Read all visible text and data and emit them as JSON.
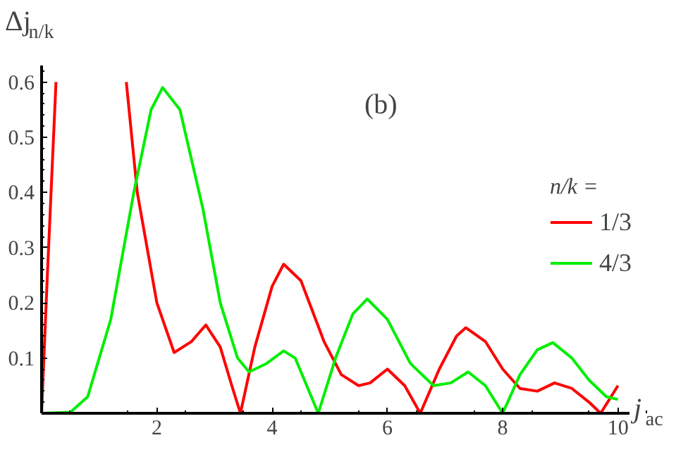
{
  "chart_data": {
    "type": "line",
    "ylabel": "Δj$_{n/k}$",
    "xlabel": "j$_{ac}$",
    "legend_title": "n/k =",
    "legend": "right",
    "grid": false,
    "annotations": [
      "(b)"
    ],
    "xlim": [
      0,
      10.2
    ],
    "ylim": [
      0,
      0.63
    ],
    "xticks": [
      2,
      4,
      6,
      8,
      10
    ],
    "yticks": [
      0.1,
      0.2,
      0.3,
      0.4,
      0.5,
      0.6
    ],
    "series": [
      {
        "name": "1/3",
        "color": "#ff0000",
        "x": [
          0,
          0.1,
          0.25,
          0.8,
          1.47,
          1.66,
          2.0,
          2.3,
          2.6,
          2.85,
          3.1,
          3.3,
          3.45,
          3.7,
          4.0,
          4.2,
          4.5,
          4.9,
          5.2,
          5.5,
          5.7,
          6.0,
          6.3,
          6.57,
          6.9,
          7.2,
          7.36,
          7.7,
          8.0,
          8.3,
          8.6,
          8.9,
          9.2,
          9.5,
          9.7,
          10.0
        ],
        "values": [
          0,
          0.25,
          0.6,
          null,
          0.6,
          0.4,
          0.2,
          0.11,
          0.13,
          0.16,
          0.12,
          0.05,
          0,
          0.12,
          0.23,
          0.27,
          0.24,
          0.13,
          0.07,
          0.05,
          0.055,
          0.08,
          0.05,
          0,
          0.08,
          0.14,
          0.155,
          0.13,
          0.08,
          0.045,
          0.04,
          0.055,
          0.045,
          0.02,
          0,
          0.05
        ]
      },
      {
        "name": "4/3",
        "color": "#00ee00",
        "x": [
          0,
          0.5,
          0.8,
          1.2,
          1.6,
          1.9,
          2.1,
          2.4,
          2.8,
          3.1,
          3.4,
          3.6,
          3.9,
          4.2,
          4.4,
          4.6,
          4.8,
          5.1,
          5.4,
          5.65,
          6.0,
          6.4,
          6.8,
          7.1,
          7.4,
          7.7,
          8.0,
          8.3,
          8.6,
          8.87,
          9.2,
          9.5,
          9.8,
          10.0
        ],
        "values": [
          0,
          0.002,
          0.03,
          0.17,
          0.4,
          0.55,
          0.59,
          0.55,
          0.37,
          0.2,
          0.1,
          0.075,
          0.09,
          0.113,
          0.1,
          0.05,
          0,
          0.1,
          0.18,
          0.207,
          0.17,
          0.09,
          0.05,
          0.055,
          0.075,
          0.05,
          0,
          0.07,
          0.115,
          0.128,
          0.1,
          0.06,
          0.03,
          0.025
        ]
      }
    ]
  }
}
